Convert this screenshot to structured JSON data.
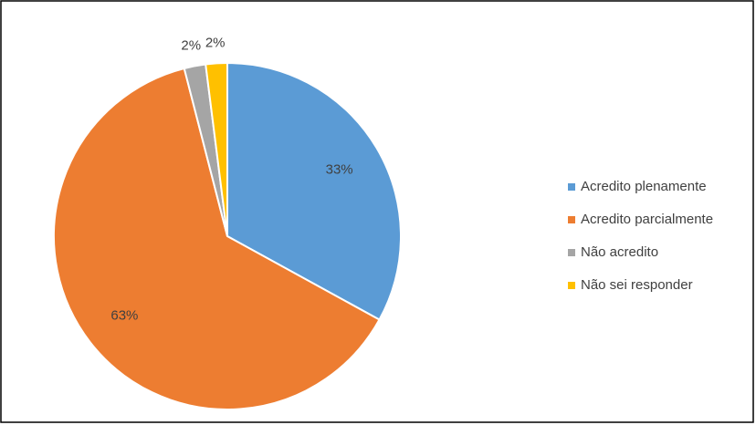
{
  "chart_data": {
    "type": "pie",
    "categories": [
      "Acredito plenamente",
      "Acredito parcialmente",
      "Não acredito",
      "Não sei responder"
    ],
    "values": [
      33,
      63,
      2,
      2
    ],
    "value_labels": [
      "33%",
      "63%",
      "2%",
      "2%"
    ],
    "colors": [
      "#5b9bd5",
      "#ed7d31",
      "#a5a5a5",
      "#ffc000"
    ],
    "legend": "right"
  }
}
